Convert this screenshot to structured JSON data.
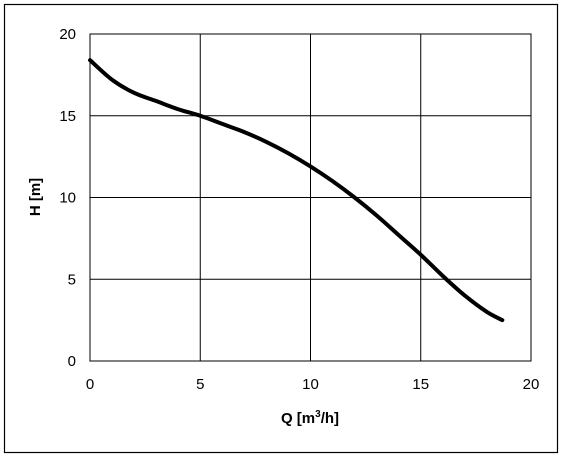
{
  "chart_data": {
    "type": "line",
    "title": "",
    "xlabel": "Q [m",
    "xlabel_sup": "3",
    "xlabel_tail": "/h]",
    "ylabel": "H [m]",
    "xlim": [
      0,
      20
    ],
    "ylim": [
      0,
      20
    ],
    "x_ticks": [
      "0",
      "5",
      "10",
      "15",
      "20"
    ],
    "y_ticks": [
      "0",
      "5",
      "10",
      "15",
      "20"
    ],
    "grid": true,
    "series": [
      {
        "values": [
          [
            0,
            18.4
          ],
          [
            1,
            17.2
          ],
          [
            2,
            16.4
          ],
          [
            3,
            15.9
          ],
          [
            4,
            15.4
          ],
          [
            5,
            15.0
          ],
          [
            6,
            14.5
          ],
          [
            7,
            14.0
          ],
          [
            8,
            13.4
          ],
          [
            9,
            12.7
          ],
          [
            10,
            11.9
          ],
          [
            11,
            11.0
          ],
          [
            12,
            10.0
          ],
          [
            13,
            8.9
          ],
          [
            14,
            7.7
          ],
          [
            15,
            6.5
          ],
          [
            16,
            5.2
          ],
          [
            17,
            4.0
          ],
          [
            18,
            3.0
          ],
          [
            18.7,
            2.5
          ]
        ],
        "color": "#000000"
      }
    ]
  }
}
